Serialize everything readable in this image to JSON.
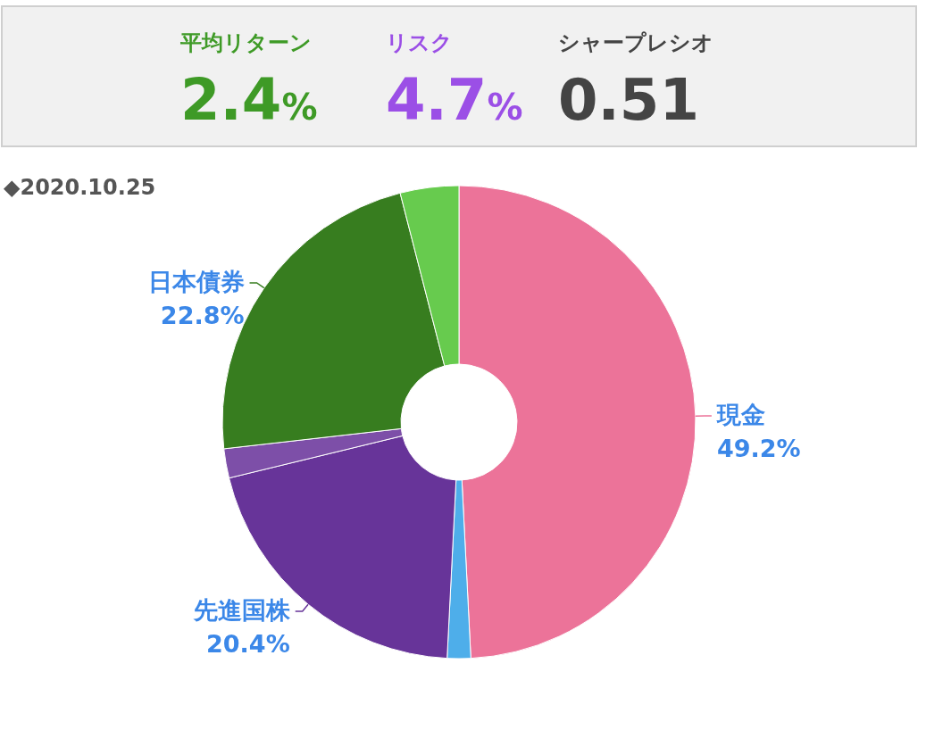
{
  "chart_data": [
    {
      "type": "other",
      "annotations": [
        "平均リターン",
        "2.4%",
        "リスク",
        "4.7%",
        "シャープレシオ",
        "0.51"
      ],
      "colors": [
        "#3e9a26",
        "#9b4fe6",
        "#444444"
      ]
    },
    {
      "type": "donut",
      "title": "◆2020.10.25",
      "categories": [
        "現金",
        null,
        "先進国株",
        null,
        "日本債券",
        null
      ],
      "values": [
        49.2,
        1.6,
        20.4,
        2.0,
        22.8,
        4.0
      ],
      "colors": [
        "#ec7399",
        "#4eaeea",
        "#673499",
        "#7d4fa8",
        "#377d1f",
        "#67cb4e"
      ],
      "value_labels": [
        "49.2%",
        null,
        "20.4%",
        null,
        "22.8%",
        null
      ]
    }
  ]
}
